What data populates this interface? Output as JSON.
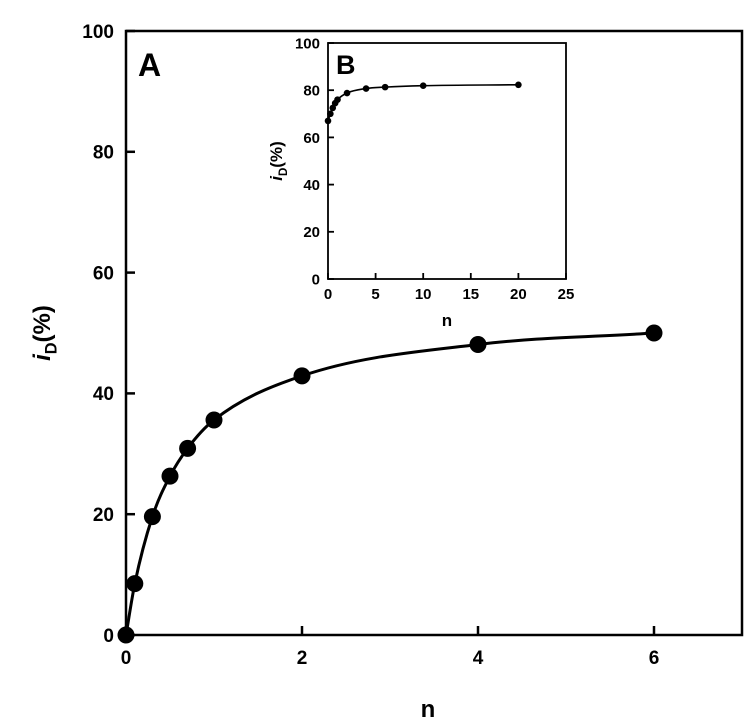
{
  "chart_data": [
    {
      "panel": "A",
      "type": "scatter",
      "xlabel": "n",
      "ylabel_main": "i",
      "ylabel_sub": "D",
      "ylabel_unit": "(%)",
      "xlim": [
        0,
        7
      ],
      "ylim": [
        0,
        100
      ],
      "xticks": [
        0,
        2,
        4,
        6
      ],
      "yticks": [
        0,
        20,
        40,
        60,
        80,
        100
      ],
      "grid": false,
      "series": [
        {
          "points": [
            {
              "x": 0,
              "y": 0
            },
            {
              "x": 0.1,
              "y": 8.5
            },
            {
              "x": 0.3,
              "y": 19.6
            },
            {
              "x": 0.5,
              "y": 26.3
            },
            {
              "x": 0.7,
              "y": 30.9
            },
            {
              "x": 1,
              "y": 35.6
            },
            {
              "x": 2,
              "y": 42.9
            },
            {
              "x": 4,
              "y": 48.1
            },
            {
              "x": 6,
              "y": 50.0
            }
          ],
          "fit_line": true
        }
      ]
    },
    {
      "panel": "B",
      "type": "scatter",
      "xlabel": "n",
      "ylabel_main": "i",
      "ylabel_sub": "D",
      "ylabel_unit": "(%)",
      "xlim": [
        0,
        25
      ],
      "ylim": [
        0,
        100
      ],
      "xticks": [
        0,
        5,
        10,
        15,
        20,
        25
      ],
      "yticks": [
        0,
        20,
        40,
        60,
        80,
        100
      ],
      "grid": false,
      "series": [
        {
          "points": [
            {
              "x": 0,
              "y": 67
            },
            {
              "x": 0.25,
              "y": 70
            },
            {
              "x": 0.5,
              "y": 72.5
            },
            {
              "x": 0.75,
              "y": 74.5
            },
            {
              "x": 1,
              "y": 76
            },
            {
              "x": 2,
              "y": 78.8
            },
            {
              "x": 4,
              "y": 80.7
            },
            {
              "x": 6,
              "y": 81.3
            },
            {
              "x": 10,
              "y": 81.9
            },
            {
              "x": 20,
              "y": 82.3
            }
          ],
          "fit_line": true
        }
      ]
    }
  ]
}
